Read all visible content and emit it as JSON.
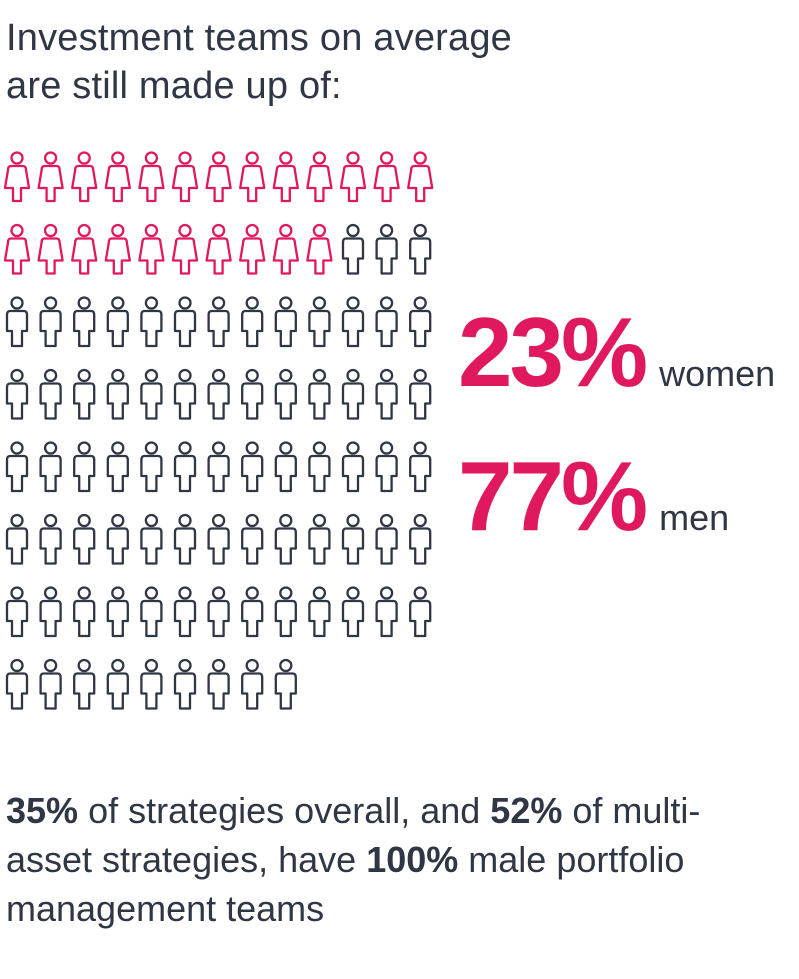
{
  "title": {
    "line1": "Investment teams on average",
    "line2": "are still made up of:"
  },
  "colors": {
    "women": "#e0185e",
    "men": "#2f3644",
    "text": "#2f3644"
  },
  "chart_data": {
    "type": "pictogram",
    "columns": 13,
    "total_icons": 100,
    "series": [
      {
        "name": "women",
        "value": 23,
        "unit": "%",
        "icon": "woman-icon",
        "color": "#e0185e"
      },
      {
        "name": "men",
        "value": 77,
        "unit": "%",
        "icon": "man-icon",
        "color": "#2f3644"
      }
    ]
  },
  "stats": {
    "women": {
      "value": "23%",
      "label": "women"
    },
    "men": {
      "value": "77%",
      "label": "men"
    }
  },
  "footnote": {
    "v1": "35%",
    "t1": " of strategies overall, and ",
    "v2": "52%",
    "t2": " of multi-asset strategies, have ",
    "v3": "100%",
    "t3": " male portfolio management teams"
  }
}
